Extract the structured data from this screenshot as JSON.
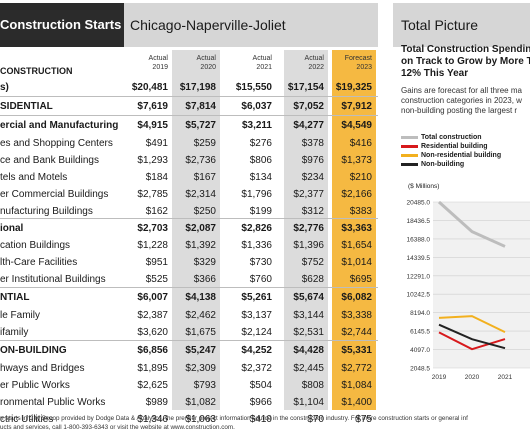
{
  "table": {
    "title": "Construction Starts",
    "region": "Chicago-Naperville-Joliet",
    "section_label": "CONSTRUCTION",
    "columns": [
      {
        "line1": "Actual",
        "line2": "2019"
      },
      {
        "line1": "Actual",
        "line2": "2020"
      },
      {
        "line1": "Actual",
        "line2": "2021"
      },
      {
        "line1": "Actual",
        "line2": "2022"
      },
      {
        "line1": "Forecast",
        "line2": "2023"
      }
    ],
    "rows": [
      {
        "label": "s)",
        "values": [
          "$20,481",
          "$17,198",
          "$15,550",
          "$17,154",
          "$19,325"
        ],
        "bold": true
      },
      {
        "label": "SIDENTIAL",
        "values": [
          "$7,619",
          "$7,814",
          "$6,037",
          "$7,052",
          "$7,912"
        ],
        "bold": true
      },
      {
        "label": "ercial and Manufacturing",
        "values": [
          "$4,915",
          "$5,727",
          "$3,211",
          "$4,277",
          "$4,549"
        ],
        "bold": true
      },
      {
        "label": "es and Shopping Centers",
        "values": [
          "$491",
          "$259",
          "$276",
          "$378",
          "$416"
        ],
        "bold": false
      },
      {
        "label": "ce and Bank Buildings",
        "values": [
          "$1,293",
          "$2,736",
          "$806",
          "$976",
          "$1,373"
        ],
        "bold": false
      },
      {
        "label": "tels and Motels",
        "values": [
          "$184",
          "$167",
          "$134",
          "$234",
          "$210"
        ],
        "bold": false
      },
      {
        "label": "er Commercial Buildings",
        "values": [
          "$2,785",
          "$2,314",
          "$1,796",
          "$2,377",
          "$2,166"
        ],
        "bold": false
      },
      {
        "label": "nufacturing Buildings",
        "values": [
          "$162",
          "$250",
          "$199",
          "$312",
          "$383"
        ],
        "bold": false
      },
      {
        "label": "ional",
        "values": [
          "$2,703",
          "$2,087",
          "$2,826",
          "$2,776",
          "$3,363"
        ],
        "bold": true
      },
      {
        "label": "cation Buildings",
        "values": [
          "$1,228",
          "$1,392",
          "$1,336",
          "$1,396",
          "$1,654"
        ],
        "bold": false
      },
      {
        "label": "lth-Care Facilities",
        "values": [
          "$951",
          "$329",
          "$730",
          "$752",
          "$1,014"
        ],
        "bold": false
      },
      {
        "label": "er Institutional Buildings",
        "values": [
          "$525",
          "$366",
          "$760",
          "$628",
          "$695"
        ],
        "bold": false
      },
      {
        "label": "NTIAL",
        "values": [
          "$6,007",
          "$4,138",
          "$5,261",
          "$5,674",
          "$6,082"
        ],
        "bold": true
      },
      {
        "label": "le Family",
        "values": [
          "$2,387",
          "$2,462",
          "$3,137",
          "$3,144",
          "$3,338"
        ],
        "bold": false
      },
      {
        "label": "ifamily",
        "values": [
          "$3,620",
          "$1,675",
          "$2,124",
          "$2,531",
          "$2,744"
        ],
        "bold": false
      },
      {
        "label": "ON-BUILDING",
        "values": [
          "$6,856",
          "$5,247",
          "$4,252",
          "$4,428",
          "$5,331"
        ],
        "bold": true
      },
      {
        "label": "hways and Bridges",
        "values": [
          "$1,895",
          "$2,309",
          "$2,372",
          "$2,445",
          "$2,772"
        ],
        "bold": false
      },
      {
        "label": "er Public Works",
        "values": [
          "$2,625",
          "$793",
          "$504",
          "$808",
          "$1,084"
        ],
        "bold": false
      },
      {
        "label": "ronmental Public Works",
        "values": [
          "$989",
          "$1,082",
          "$966",
          "$1,104",
          "$1,400"
        ],
        "bold": false
      },
      {
        "label": "ctric Utilities",
        "values": [
          "$1,346",
          "$1,063",
          "$410",
          "$70",
          "$75"
        ],
        "bold": false
      }
    ],
    "footer_line1": "n starts in City Scoop provided by Dodge Data & Analytics, the premier project information source in the construction industry. For more construction starts or general inf",
    "footer_line2": "ucts and services, call 1-800-393-6343 or visit the website at www.construction.com."
  },
  "panel": {
    "title": "Total Picture",
    "headline_lines": [
      "Total Construction Spending",
      "on Track to Grow by More Th",
      "12% This Year"
    ],
    "body_lines": [
      "Gains are forecast for all three ma",
      "construction categories in 2023, w",
      "non-building posting the largest r"
    ]
  },
  "colors": {
    "total": "#bdbdbd",
    "residential_building": "#d7191c",
    "non_residential_building": "#f2b01e",
    "non_building": "#222222",
    "forecast_highlight": "#f5b942",
    "actual_shade": "#dcdcdc"
  },
  "chart_data": {
    "type": "line",
    "ylabel": "($ Millions)",
    "yticks": [
      "20485.0",
      "18436.5",
      "16388.0",
      "14339.5",
      "12291.0",
      "10242.5",
      "8194.0",
      "6145.5",
      "4097.0",
      "2048.5"
    ],
    "ylim": [
      2048.5,
      20485.0
    ],
    "x": [
      "2019",
      "2020",
      "2021"
    ],
    "series": [
      {
        "name": "Total construction",
        "values": [
          20481,
          17198,
          15550
        ],
        "color": "#bdbdbd"
      },
      {
        "name": "Residential building",
        "values": [
          6007,
          4138,
          5261
        ],
        "color": "#d7191c"
      },
      {
        "name": "Non-residential building",
        "values": [
          7619,
          7814,
          6037
        ],
        "color": "#f2b01e"
      },
      {
        "name": "Non-building",
        "values": [
          6856,
          5247,
          4252
        ],
        "color": "#222222"
      }
    ],
    "grid": true,
    "legend": "top-left"
  }
}
